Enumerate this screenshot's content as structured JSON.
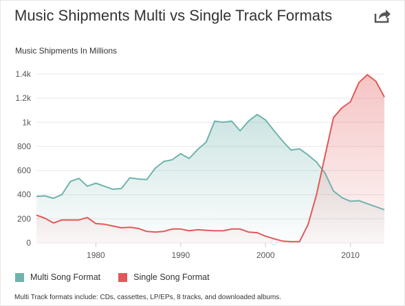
{
  "header": {
    "title": "Music Shipments Multi vs Single Track Formats",
    "share_icon": "share-icon"
  },
  "footnote": "Multi Track formats include: CDs, cassettes, LP/EPs, 8 tracks, and downloaded albums.",
  "colors": {
    "multi": "#6fb3ac",
    "single": "#e25858",
    "grid": "#e8e8e8",
    "multi_fill": "#6fb3ac",
    "single_fill": "#e25858"
  },
  "chart_data": {
    "type": "area",
    "title": "Music Shipments Multi vs Single Track Formats",
    "ylabel": "Music Shipments In Millions",
    "xlabel": "",
    "xlim": [
      1973,
      2014
    ],
    "ylim": [
      0,
      1400
    ],
    "x_ticks": [
      1980,
      1990,
      2000,
      2010
    ],
    "y_ticks": [
      0,
      200,
      400,
      600,
      800,
      1000,
      1200,
      1400
    ],
    "y_tick_labels": [
      "0",
      "200",
      "400",
      "600",
      "800",
      "1k",
      "1.2k",
      "1.4k"
    ],
    "grid": true,
    "legend_position": "bottom-left",
    "x": [
      1973,
      1974,
      1975,
      1976,
      1977,
      1978,
      1979,
      1980,
      1981,
      1982,
      1983,
      1984,
      1985,
      1986,
      1987,
      1988,
      1989,
      1990,
      1991,
      1992,
      1993,
      1994,
      1995,
      1996,
      1997,
      1998,
      1999,
      2000,
      2001,
      2002,
      2003,
      2004,
      2005,
      2006,
      2007,
      2008,
      2009,
      2010,
      2011,
      2012,
      2013,
      2014
    ],
    "series": [
      {
        "name": "Multi Song Format",
        "values": [
          385,
          390,
          370,
          400,
          510,
          535,
          470,
          495,
          470,
          445,
          450,
          540,
          530,
          525,
          620,
          675,
          690,
          740,
          700,
          775,
          835,
          1010,
          1000,
          1010,
          930,
          1010,
          1065,
          1020,
          930,
          845,
          770,
          780,
          730,
          670,
          580,
          430,
          375,
          345,
          350,
          325,
          300,
          275
        ]
      },
      {
        "name": "Single Song Format",
        "values": [
          230,
          205,
          165,
          190,
          190,
          190,
          210,
          160,
          155,
          140,
          125,
          130,
          120,
          95,
          90,
          95,
          115,
          115,
          100,
          110,
          105,
          100,
          100,
          115,
          115,
          90,
          85,
          55,
          35,
          15,
          10,
          10,
          150,
          400,
          720,
          1040,
          1120,
          1170,
          1330,
          1395,
          1340,
          1210
        ]
      }
    ]
  }
}
